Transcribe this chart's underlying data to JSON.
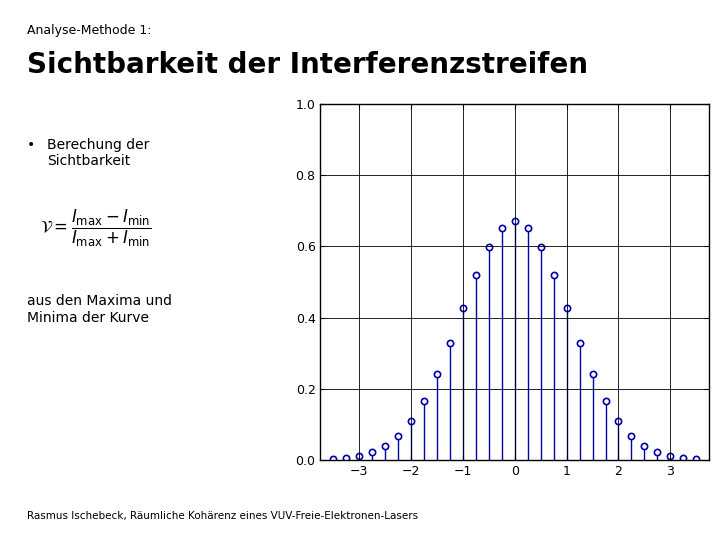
{
  "title_small": "Analyse-Methode 1:",
  "title_large": "Sichtbarkeit der Interferenzstreifen",
  "bullet_text": "Berechung der\nSichtbarkeit",
  "formula_text": "aus den Maxima und\nMinima der Kurve",
  "footnote": "Rasmus Ischebeck, Räumliche Kohärenz eines VUV-Freie-Elektronen-Lasers",
  "stem_color": "#0000AA",
  "background": "#ffffff",
  "xlim": [
    -3.75,
    3.75
  ],
  "ylim": [
    0,
    1.0
  ],
  "yticks": [
    0,
    0.2,
    0.4,
    0.6,
    0.8,
    1.0
  ],
  "xticks": [
    -3,
    -2,
    -1,
    0,
    1,
    2,
    3
  ],
  "x_step": 0.25,
  "sigma": 1.05,
  "peak": 0.67
}
